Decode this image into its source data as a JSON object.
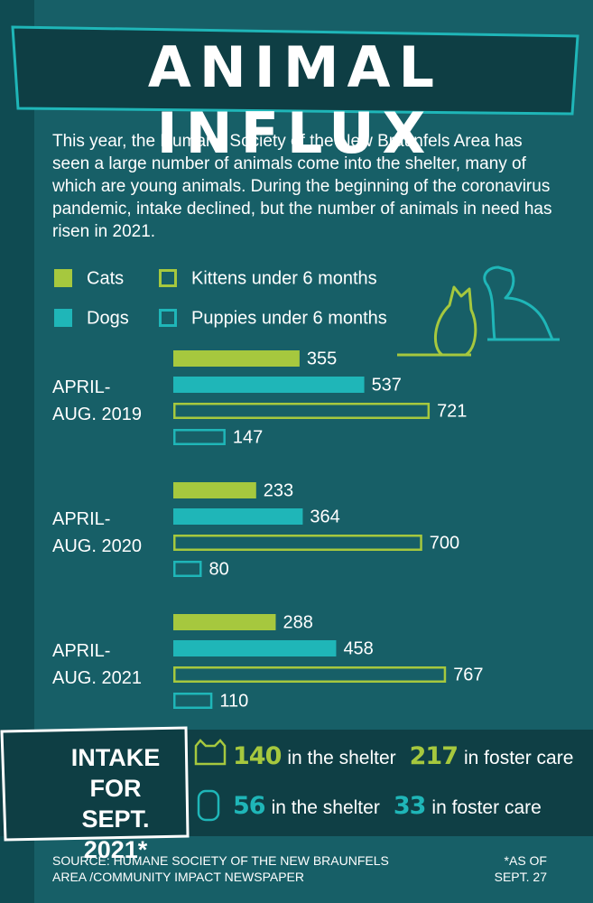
{
  "header": {
    "title": "ANIMAL INFLUX",
    "description": "This year, the Humane Society of the New Braunfels Area has seen a large number of animals come into the shelter, many of which are young animals. During the beginning of the coronavirus pandemic, intake declined, but the number of animals in need has risen in 2021."
  },
  "chart_data": {
    "type": "bar",
    "orientation": "horizontal",
    "categories": [
      "APRIL-\nAUG. 2019",
      "APRIL-\nAUG. 2020",
      "APRIL-\nAUG. 2021"
    ],
    "series": [
      {
        "name": "Cats",
        "color": "#a6c83e",
        "fill": true,
        "values": [
          355,
          233,
          288
        ]
      },
      {
        "name": "Dogs",
        "color": "#1fb6b8",
        "fill": true,
        "values": [
          537,
          364,
          458
        ]
      },
      {
        "name": "Kittens under 6 months",
        "color": "#a6c83e",
        "fill": false,
        "values": [
          721,
          700,
          767
        ]
      },
      {
        "name": "Puppies under 6 months",
        "color": "#1fb6b8",
        "fill": false,
        "values": [
          147,
          80,
          110
        ]
      }
    ]
  },
  "intake": {
    "title": "INTAKE FOR\nSEPT. 2021*",
    "rows": [
      {
        "color": "#a6c83e",
        "shelter": 140,
        "shelter_label": "in the shelter",
        "foster": 217,
        "foster_label": "in foster care"
      },
      {
        "color": "#1fb6b8",
        "shelter": 56,
        "shelter_label": "in the shelter",
        "foster": 33,
        "foster_label": "in foster care"
      }
    ]
  },
  "footer": {
    "source": "SOURCE: HUMANE SOCIETY OF THE NEW BRAUNFELS\nAREA /COMMUNITY IMPACT NEWSPAPER",
    "note": "*AS OF\nSEPT. 27"
  }
}
